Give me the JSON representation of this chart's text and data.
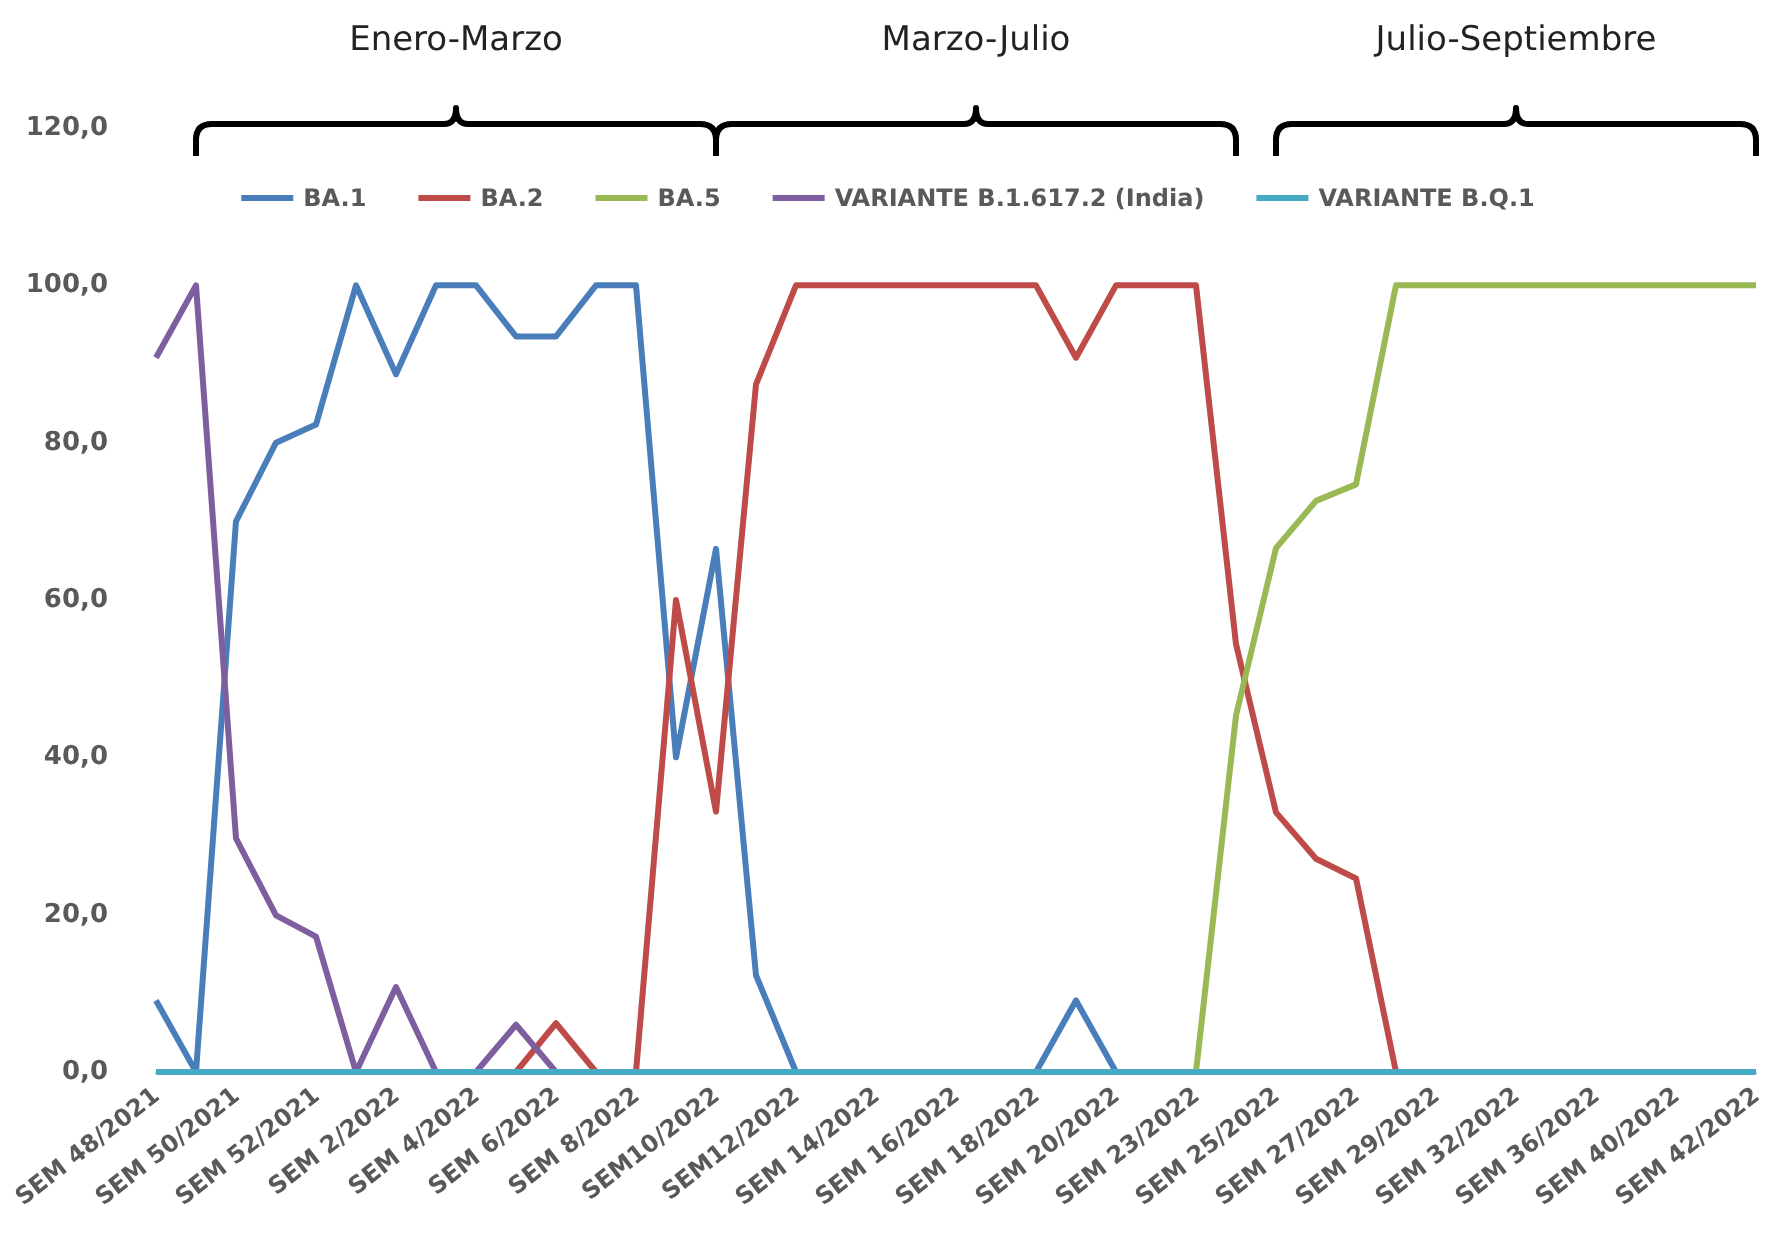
{
  "chart_data": {
    "type": "line",
    "categories": [
      "SEM 48/2021",
      null,
      "SEM 50/2021",
      null,
      "SEM 52/2021",
      null,
      "SEM 2/2022",
      null,
      "SEM 4/2022",
      null,
      "SEM 6/2022",
      null,
      "SEM 8/2022",
      null,
      "SEM10/2022",
      null,
      "SEM12/2022",
      null,
      "SEM 14/2022",
      null,
      "SEM 16/2022",
      null,
      "SEM 18/2022",
      null,
      "SEM 20/2022",
      null,
      "SEM 23/2022",
      null,
      "SEM 25/2022",
      null,
      "SEM 27/2022",
      null,
      "SEM 29/2022",
      null,
      "SEM 32/2022",
      null,
      "SEM 36/2022",
      null,
      "SEM 40/2022",
      null,
      "SEM 42/2022"
    ],
    "series": [
      {
        "name": "BA.1",
        "color": "#4a7ebb",
        "values": [
          9.1,
          0,
          70,
          80,
          82.3,
          100,
          88.7,
          100,
          100,
          93.5,
          93.5,
          100,
          100,
          40,
          66.5,
          12.3,
          0,
          null,
          null,
          null,
          null,
          null,
          0,
          9.1,
          0,
          null,
          null,
          null,
          null,
          null,
          null,
          null,
          null,
          null,
          null,
          null,
          null,
          null,
          null,
          null,
          null
        ]
      },
      {
        "name": "BA.2",
        "color": "#be4b48",
        "values": [
          null,
          null,
          null,
          null,
          null,
          null,
          null,
          null,
          null,
          0,
          6.2,
          0,
          0,
          60,
          33.1,
          87.4,
          100,
          100,
          100,
          100,
          100,
          100,
          100,
          90.8,
          100,
          100,
          100,
          54.4,
          33,
          27.1,
          24.6,
          0,
          null,
          null,
          null,
          null,
          null,
          null,
          null,
          null,
          null
        ]
      },
      {
        "name": "BA.5",
        "color": "#98b954",
        "values": [
          null,
          null,
          null,
          null,
          null,
          null,
          null,
          null,
          null,
          null,
          null,
          null,
          null,
          null,
          null,
          null,
          null,
          null,
          null,
          null,
          null,
          null,
          null,
          null,
          null,
          null,
          0,
          45.3,
          66.6,
          72.6,
          74.7,
          100,
          100,
          100,
          100,
          100,
          100,
          100,
          100,
          100,
          100
        ]
      },
      {
        "name": "VARIANTE B.1.617.2 (India)",
        "color": "#7d5fa0",
        "values": [
          90.8,
          100,
          29.7,
          19.9,
          17.2,
          0,
          10.8,
          0,
          0,
          6,
          0,
          null,
          null,
          null,
          null,
          null,
          null,
          null,
          null,
          null,
          null,
          null,
          null,
          null,
          null,
          null,
          null,
          null,
          null,
          null,
          null,
          null,
          null,
          null,
          null,
          null,
          null,
          null,
          null,
          null,
          null
        ]
      },
      {
        "name": "VARIANTE B.Q.1",
        "color": "#46aac5",
        "values": [
          0,
          0,
          0,
          0,
          0,
          0,
          0,
          0,
          0,
          0,
          0,
          0,
          0,
          0,
          0,
          0,
          0,
          0,
          0,
          0,
          0,
          0,
          0,
          0,
          0,
          0,
          0,
          0,
          0,
          0,
          0,
          0,
          0,
          0,
          0,
          0,
          0,
          0,
          0,
          0,
          0
        ]
      }
    ],
    "ylim": [
      0,
      120
    ],
    "yticks": [
      {
        "value": 0,
        "label": "0,0"
      },
      {
        "value": 20,
        "label": "20,0"
      },
      {
        "value": 40,
        "label": "40,0"
      },
      {
        "value": 60,
        "label": "60,0"
      },
      {
        "value": 80,
        "label": "80,0"
      },
      {
        "value": 100,
        "label": "100,0"
      },
      {
        "value": 120,
        "label": "120,0"
      }
    ],
    "annotations": [
      "Enero-Marzo",
      "Marzo-Julio",
      "Julio-Septiembre"
    ],
    "grid": false,
    "legend": "top",
    "marker": "none",
    "line_style": "solid"
  }
}
